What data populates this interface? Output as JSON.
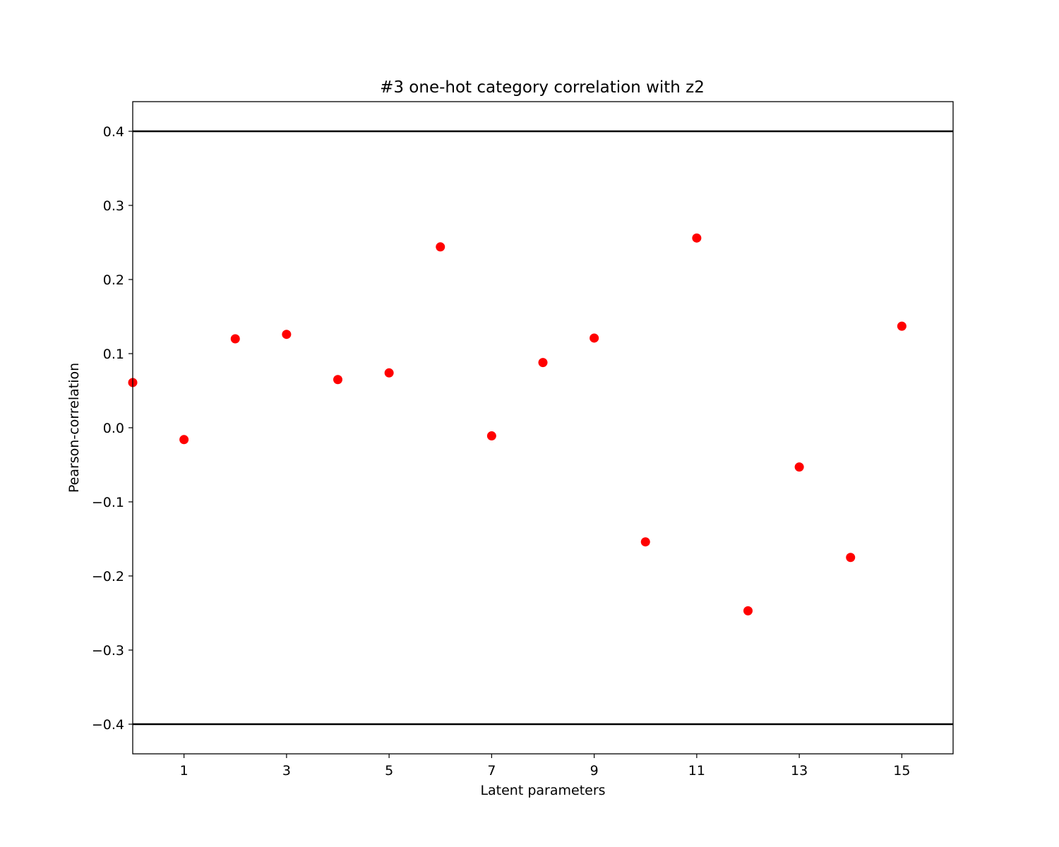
{
  "chart_data": {
    "type": "scatter",
    "title": "#3 one-hot category correlation with z2",
    "xlabel": "Latent parameters",
    "ylabel": "Pearson-correlation",
    "xlim": [
      0,
      16
    ],
    "ylim": [
      -0.44,
      0.44
    ],
    "x_ticks": [
      1,
      3,
      5,
      7,
      9,
      11,
      13,
      15
    ],
    "x_tick_labels": [
      "1",
      "3",
      "5",
      "7",
      "9",
      "11",
      "13",
      "15"
    ],
    "y_ticks": [
      0.4,
      0.3,
      0.2,
      0.1,
      0.0,
      -0.1,
      -0.2,
      -0.3,
      -0.4
    ],
    "y_tick_labels": [
      "0.4",
      "0.3",
      "0.2",
      "0.1",
      "0.0",
      "−0.1",
      "−0.2",
      "−0.3",
      "−0.4"
    ],
    "x": [
      0,
      1,
      2,
      3,
      4,
      5,
      6,
      7,
      8,
      9,
      10,
      11,
      12,
      13,
      14,
      15
    ],
    "y": [
      0.061,
      -0.016,
      0.12,
      0.126,
      0.065,
      0.074,
      0.244,
      -0.011,
      0.088,
      0.121,
      -0.154,
      0.256,
      -0.247,
      -0.053,
      -0.175,
      0.137
    ],
    "reference_lines": [
      0.4,
      -0.4
    ],
    "grid": false,
    "colors": {
      "points": "#ff0000",
      "lines": "#000000"
    }
  }
}
